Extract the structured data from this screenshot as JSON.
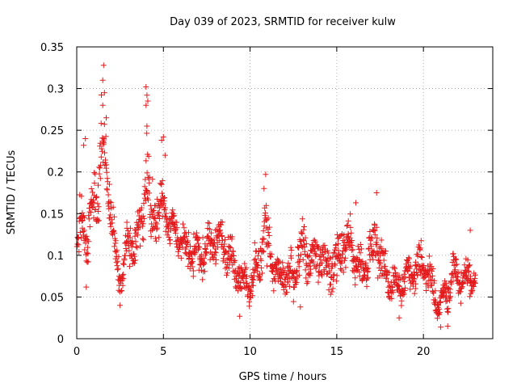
{
  "chart_data": {
    "type": "scatter",
    "title": "Day 039 of 2023, SRMTID for receiver kulw",
    "xlabel": "GPS time / hours",
    "ylabel": "SRMTID / TECUs",
    "xlim": [
      0,
      24
    ],
    "ylim": [
      0,
      0.35
    ],
    "xticks": [
      0,
      5,
      10,
      15,
      20
    ],
    "xtick_labels": [
      "0",
      "5",
      "10",
      "15",
      "20"
    ],
    "yticks": [
      0,
      0.05,
      0.1,
      0.15,
      0.2,
      0.25,
      0.3,
      0.35
    ],
    "ytick_labels": [
      "0",
      "0.05",
      "0.1",
      "0.15",
      "0.2",
      "0.25",
      "0.3",
      "0.35"
    ],
    "grid": true,
    "marker": "+",
    "color": "#e41a1c",
    "series": [
      {
        "name": "SRMTID",
        "envelope": {
          "x": [
            0,
            0.3,
            0.6,
            1.0,
            1.3,
            1.5,
            1.7,
            2.0,
            2.3,
            2.6,
            3.0,
            3.3,
            3.7,
            4.0,
            4.3,
            4.7,
            5.0,
            5.5,
            6.0,
            6.5,
            7.0,
            7.5,
            8.0,
            8.5,
            9.0,
            9.5,
            10.0,
            10.5,
            10.9,
            11.3,
            11.7,
            12.0,
            12.5,
            13.0,
            13.5,
            14.0,
            14.5,
            15.0,
            15.5,
            16.0,
            16.5,
            17.0,
            17.3,
            17.7,
            18.0,
            18.5,
            19.0,
            19.5,
            20.0,
            20.5,
            20.9,
            21.3,
            21.7,
            22.0,
            22.5,
            23.0
          ],
          "center": [
            0.11,
            0.14,
            0.12,
            0.17,
            0.19,
            0.24,
            0.21,
            0.14,
            0.09,
            0.07,
            0.12,
            0.11,
            0.13,
            0.2,
            0.14,
            0.15,
            0.16,
            0.13,
            0.12,
            0.1,
            0.1,
            0.11,
            0.12,
            0.11,
            0.09,
            0.07,
            0.065,
            0.09,
            0.13,
            0.09,
            0.07,
            0.08,
            0.07,
            0.11,
            0.09,
            0.1,
            0.085,
            0.09,
            0.12,
            0.1,
            0.08,
            0.11,
            0.12,
            0.08,
            0.07,
            0.06,
            0.07,
            0.08,
            0.09,
            0.06,
            0.04,
            0.05,
            0.08,
            0.075,
            0.07,
            0.08
          ],
          "spread": [
            0.03,
            0.06,
            0.05,
            0.05,
            0.06,
            0.08,
            0.06,
            0.05,
            0.04,
            0.03,
            0.04,
            0.04,
            0.05,
            0.08,
            0.05,
            0.06,
            0.05,
            0.04,
            0.04,
            0.04,
            0.04,
            0.04,
            0.04,
            0.04,
            0.04,
            0.03,
            0.03,
            0.04,
            0.06,
            0.04,
            0.03,
            0.04,
            0.04,
            0.05,
            0.04,
            0.04,
            0.04,
            0.05,
            0.05,
            0.04,
            0.04,
            0.05,
            0.05,
            0.04,
            0.03,
            0.03,
            0.03,
            0.03,
            0.04,
            0.03,
            0.025,
            0.03,
            0.03,
            0.03,
            0.03,
            0.03
          ]
        },
        "highlights": [
          {
            "x": 1.55,
            "y": 0.328
          },
          {
            "x": 1.5,
            "y": 0.31
          },
          {
            "x": 1.6,
            "y": 0.295
          },
          {
            "x": 1.5,
            "y": 0.28
          },
          {
            "x": 1.7,
            "y": 0.265
          },
          {
            "x": 0.5,
            "y": 0.24
          },
          {
            "x": 0.4,
            "y": 0.232
          },
          {
            "x": 4.0,
            "y": 0.302
          },
          {
            "x": 4.05,
            "y": 0.292
          },
          {
            "x": 4.1,
            "y": 0.285
          },
          {
            "x": 4.0,
            "y": 0.28
          },
          {
            "x": 4.05,
            "y": 0.255
          },
          {
            "x": 5.0,
            "y": 0.242
          },
          {
            "x": 4.9,
            "y": 0.238
          },
          {
            "x": 5.1,
            "y": 0.22
          },
          {
            "x": 10.9,
            "y": 0.197
          },
          {
            "x": 10.8,
            "y": 0.18
          },
          {
            "x": 0.55,
            "y": 0.062
          },
          {
            "x": 2.5,
            "y": 0.04
          },
          {
            "x": 9.4,
            "y": 0.027
          },
          {
            "x": 18.6,
            "y": 0.025
          },
          {
            "x": 21.0,
            "y": 0.014
          },
          {
            "x": 21.4,
            "y": 0.015
          },
          {
            "x": 22.7,
            "y": 0.13
          },
          {
            "x": 17.3,
            "y": 0.175
          },
          {
            "x": 16.1,
            "y": 0.163
          },
          {
            "x": 12.9,
            "y": 0.038
          }
        ]
      }
    ]
  }
}
